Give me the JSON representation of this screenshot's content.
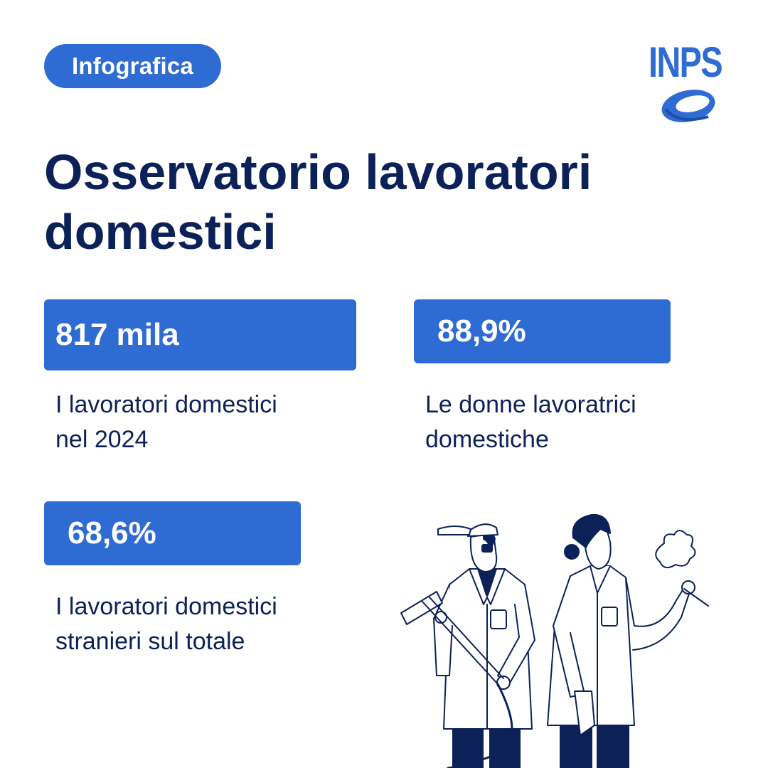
{
  "badge": {
    "label": "Infografica"
  },
  "logo": {
    "text": "INPS",
    "color": "#2e6bd3"
  },
  "title": {
    "line1": "Osservatorio lavoratori",
    "line2": "domestici"
  },
  "stats": [
    {
      "value": "817 mila",
      "desc_line1": "I lavoratori domestici",
      "desc_line2": "nel 2024"
    },
    {
      "value": "88,9%",
      "desc_line1": "Le donne lavoratrici",
      "desc_line2": "domestiche"
    },
    {
      "value": "68,6%",
      "desc_line1": "I lavoratori domestici",
      "desc_line2": "stranieri sul totale"
    }
  ],
  "illustration": {
    "subject": "two domestic workers with cleaning tools"
  },
  "colors": {
    "accent": "#2e6bd3",
    "text": "#0b2158",
    "background": "#ffffff"
  }
}
